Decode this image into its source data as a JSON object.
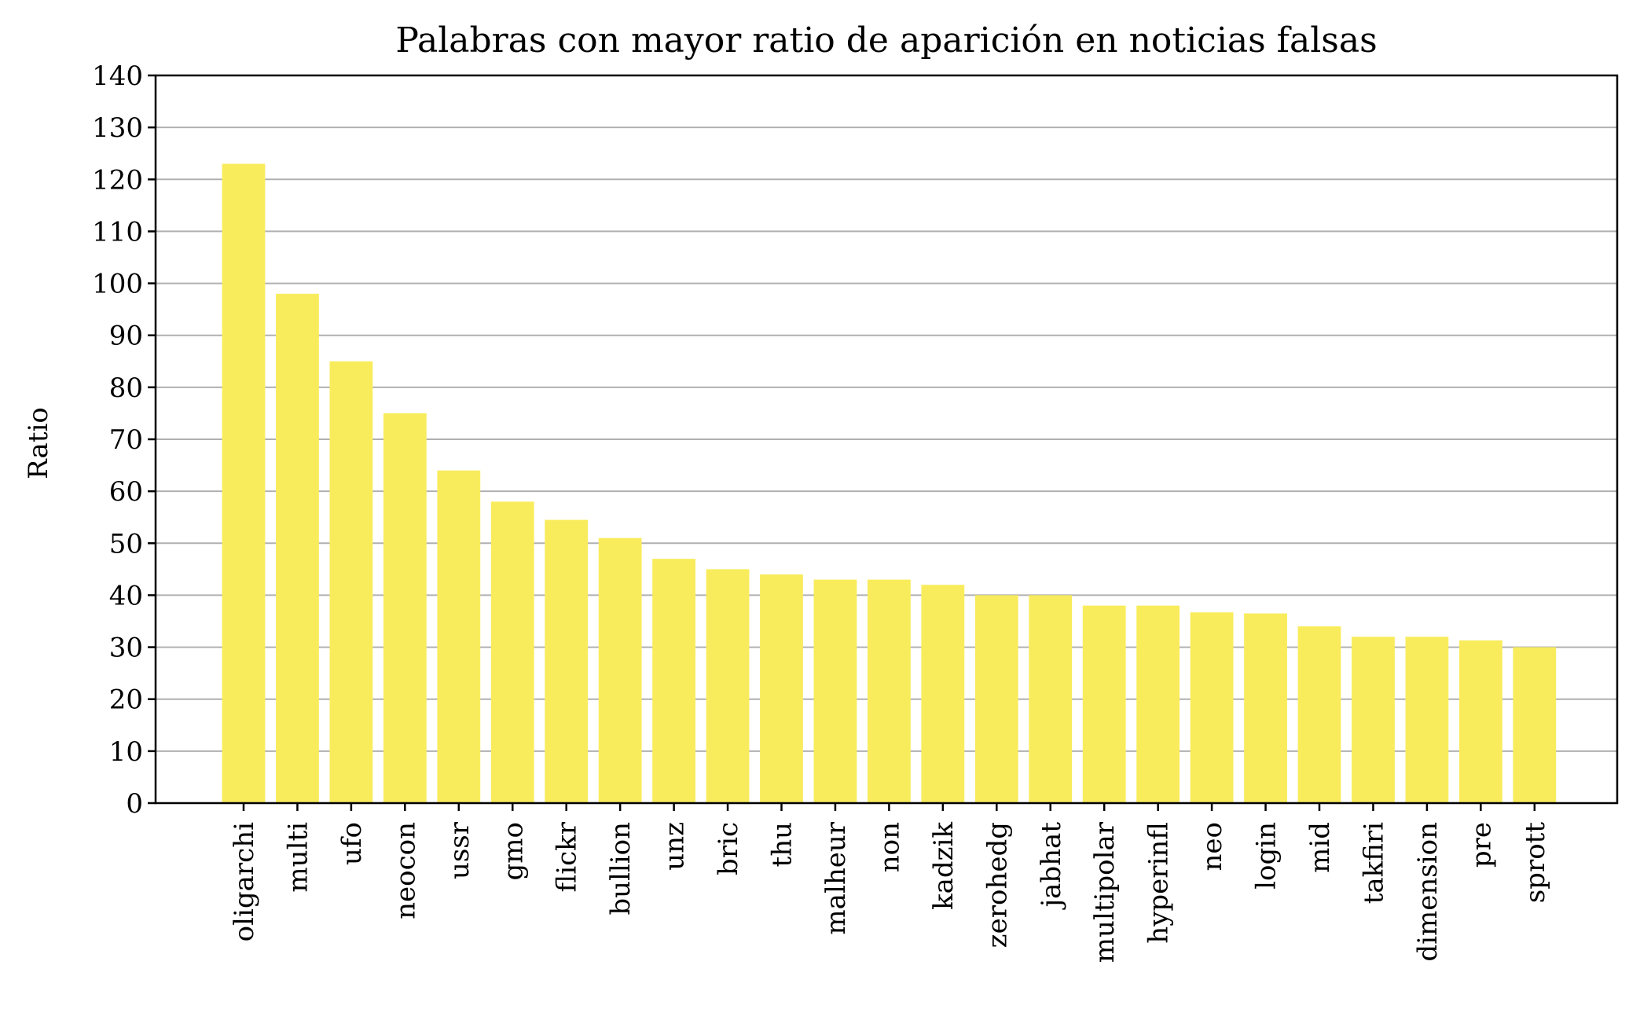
{
  "chart_data": {
    "type": "bar",
    "title": "Palabras con mayor ratio de aparición en noticias falsas",
    "xlabel": "",
    "ylabel": "Ratio",
    "ylim": [
      0,
      140
    ],
    "yticks": [
      0,
      10,
      20,
      30,
      40,
      50,
      60,
      70,
      80,
      90,
      100,
      110,
      120,
      130,
      140
    ],
    "grid": "horizontal",
    "bar_color": "#f9ec5c",
    "categories": [
      "oligarchi",
      "multi",
      "ufo",
      "neocon",
      "ussr",
      "gmo",
      "flickr",
      "bullion",
      "unz",
      "bric",
      "thu",
      "malheur",
      "non",
      "kadzik",
      "zerohedg",
      "jabhat",
      "multipolar",
      "hyperinfl",
      "neo",
      "login",
      "mid",
      "takfiri",
      "dimension",
      "pre",
      "sprott"
    ],
    "values": [
      123,
      98,
      85,
      75,
      64,
      58,
      54.5,
      51,
      47,
      45,
      44,
      43,
      43,
      42,
      40,
      40,
      38,
      38,
      36.7,
      36.5,
      34,
      32,
      32,
      31.3,
      30
    ]
  }
}
